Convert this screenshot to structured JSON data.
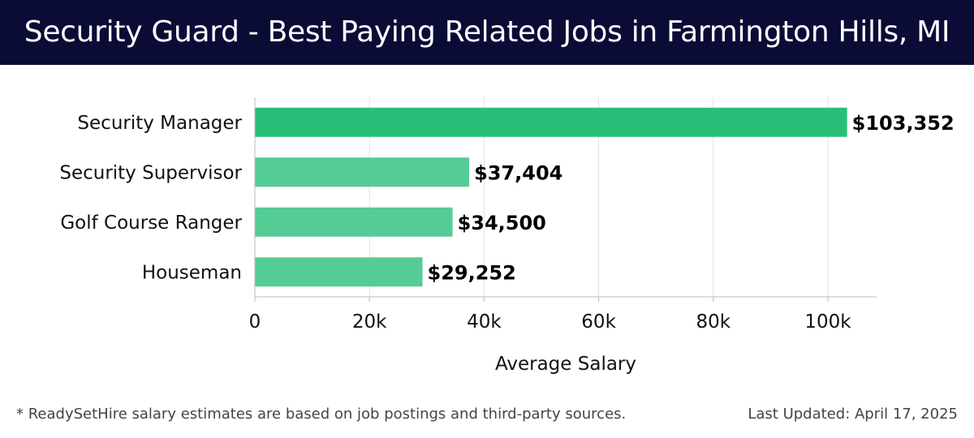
{
  "header": {
    "title": "Security Guard - Best Paying Related Jobs in Farmington Hills, MI"
  },
  "footer": {
    "note": "* ReadySetHire salary estimates are based on job postings and third-party sources.",
    "updated": "Last Updated: April 17, 2025"
  },
  "chart_data": {
    "type": "bar",
    "orientation": "horizontal",
    "categories": [
      "Security Manager",
      "Security Supervisor",
      "Golf Course Ranger",
      "Houseman"
    ],
    "values": [
      103352,
      37404,
      34500,
      29252
    ],
    "value_labels": [
      "$103,352",
      "$37,404",
      "$34,500",
      "$29,252"
    ],
    "xlabel": "Average Salary",
    "ylabel": "",
    "xlim": [
      0,
      108500
    ],
    "xticks": [
      0,
      20000,
      40000,
      60000,
      80000,
      100000
    ],
    "xtick_labels": [
      "0",
      "20k",
      "40k",
      "60k",
      "80k",
      "100k"
    ],
    "grid": true,
    "colors": {
      "highlight": "#2abf78",
      "bar": "#55cc95",
      "grid": "#e0e0e0",
      "axis": "#bbbbbb",
      "header_bg": "#0b0c36"
    }
  }
}
